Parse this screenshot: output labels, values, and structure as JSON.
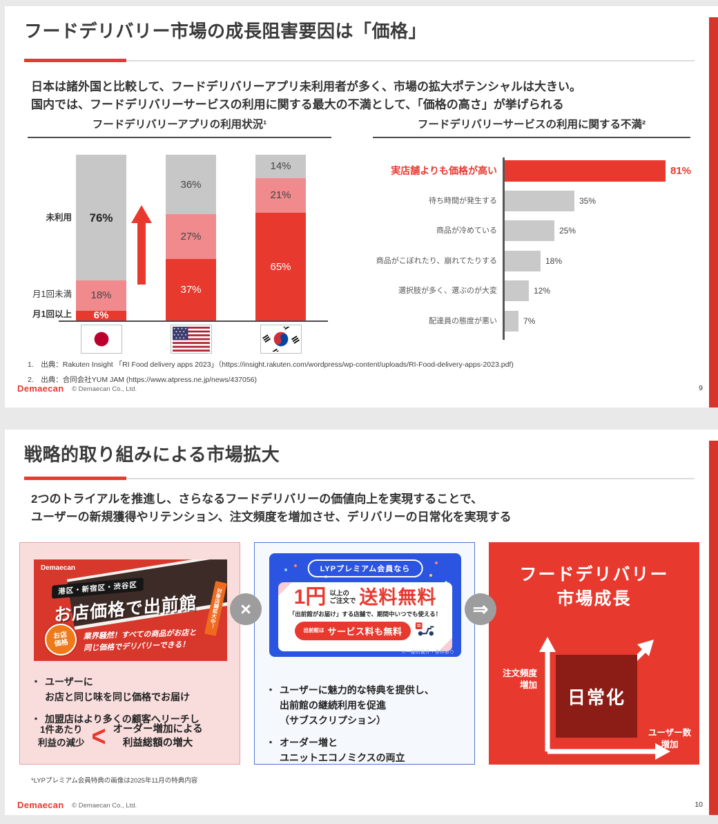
{
  "colors": {
    "accent_red": "#e8392f",
    "stripe_red": "#d6352c",
    "bar_gray": "#c7c7c8",
    "bar_pink": "#f08a8d",
    "complaint_gray": "#c9c9c9",
    "ad_blue": "#2b55e0",
    "maroon": "#8b1d16",
    "panel_pink": "#f9dddd",
    "ad_red": "#d8372c"
  },
  "slide1": {
    "title": "フードデリバリー市場の成長阻害要因は「価格」",
    "intro": "日本は諸外国と比較して、フードデリバリーアプリ未利用者が多く、市場の拡大ポテンシャルは大きい。\n国内では、フードデリバリーサービスの利用に関する最大の不満として、「価格の高さ」が挙げられる",
    "footnotes": [
      "1.　出典：Rakuten Insight 「RI Food delivery apps 2023」（https://insight.rakuten.com/wordpress/wp-content/uploads/RI-Food-delivery-apps-2023.pdf)",
      "2.　出典：合同会社YUM JAM (https://www.atpress.ne.jp/news/437056)"
    ],
    "footer": {
      "logo": "Demaecan",
      "copyright": "© Demaecan Co., Ltd.",
      "page": "9"
    }
  },
  "slide2": {
    "title": "戦略的取り組みによる市場拡大",
    "intro": "2つのトライアルを推進し、さらなるフードデリバリーの価値向上を実現することで、\nユーザーの新規獲得やリテンション、注文頻度を増加させ、デリバリーの日常化を実現する",
    "panel1": {
      "ad": {
        "logo": "Demaecan",
        "area_badge": "港区・新宿区・渋谷区",
        "headline": "お店価格で出前館",
        "ribbon": "対象店舗拡大中！",
        "badge": "お店\n価格",
        "slogan": "業界騒然！すべての商品がお店と\n同じ価格でデリバリーできる！"
      },
      "bullets": [
        "ユーザーに\nお店と同じ味を同じ価格でお届け",
        "加盟店はより多くの顧客へリーチし"
      ],
      "comparison": {
        "left": "1件あたり\n利益の減少",
        "symbol": "<",
        "right": "オーダー増加による\n利益総額の増大"
      }
    },
    "connector1": {
      "symbol": "×"
    },
    "connector2": {
      "symbol": "⇒"
    },
    "panel2": {
      "ad": {
        "pill": "LYPプレミアム会員なら",
        "price": "1円",
        "qualifier": "以上の\nご注文で",
        "free": "送料無料",
        "condition": "「出前館がお届け」する店舗で、期間中いつでも使える！",
        "service_prefix": "出前館は",
        "service_label": "サービス料も無料",
        "fine_print": "※一部対象外・条件あり"
      },
      "bullets": [
        "ユーザーに魅力的な特典を提供し、\n出前館の継続利用を促進\n（サブスクリプション）",
        "オーダー増と\nユニットエコノミクスの両立"
      ]
    },
    "panel3": {
      "title": "フードデリバリー\n市場成長",
      "axis_y": "注文頻度\n増加",
      "axis_x": "ユーザー数\n増加",
      "box": "日常化"
    },
    "footnote": "*LYPプレミアム会員特典の画像は2025年11月の特典内容",
    "footer": {
      "logo": "Demaecan",
      "copyright": "© Demaecan Co., Ltd.",
      "page": "10"
    }
  },
  "chart_data": [
    {
      "type": "bar",
      "subtype": "stacked-column",
      "title": "フードデリバリーアプリの利用状況¹",
      "categories": [
        "日本",
        "アメリカ",
        "韓国"
      ],
      "flags": [
        "jp",
        "us",
        "kr"
      ],
      "series": [
        {
          "name": "未利用",
          "values": [
            76,
            36,
            14
          ],
          "color": "#c7c7c8"
        },
        {
          "name": "月1回未満",
          "values": [
            18,
            27,
            21
          ],
          "color": "#f08a8d"
        },
        {
          "name": "月1回以上",
          "values": [
            6,
            37,
            65
          ],
          "color": "#e8392f"
        }
      ],
      "unit": "%",
      "ylim": [
        0,
        100
      ],
      "annotation": "red up-arrow between Japan and US columns"
    },
    {
      "type": "bar",
      "subtype": "horizontal",
      "title": "フードデリバリーサービスの利用に関する不満²",
      "categories": [
        "実店舗よりも価格が高い",
        "待ち時間が発生する",
        "商品が冷めている",
        "商品がこぼれたり、崩れてたりする",
        "選択肢が多く、選ぶのが大変",
        "配達員の態度が悪い"
      ],
      "values": [
        81,
        35,
        25,
        18,
        12,
        7
      ],
      "unit": "%",
      "highlight_index": 0,
      "xlim": [
        0,
        90
      ]
    }
  ]
}
